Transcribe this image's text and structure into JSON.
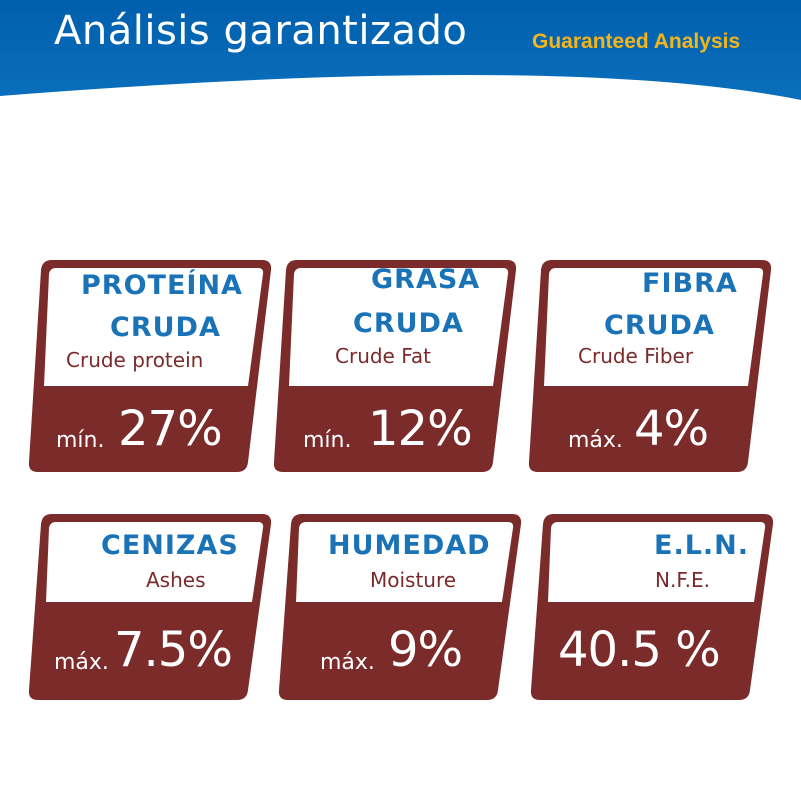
{
  "header": {
    "title": "Análisis garantizado",
    "subtitle": "Guaranteed Analysis",
    "accent_color": "#005fac",
    "subtitle_color": "#f3b51b"
  },
  "colors": {
    "card_fill": "#7c2b2b",
    "label_blue": "#1a72b7",
    "label_red": "#7b2a2a"
  },
  "cards": [
    {
      "name_es_1": "PROTEÍNA",
      "name_es_2": "CRUDA",
      "name_en": "Crude protein",
      "prefix": "mín.",
      "value": "27%"
    },
    {
      "name_es_1": "GRASA",
      "name_es_2": "CRUDA",
      "name_en": "Crude Fat",
      "prefix": "mín.",
      "value": "12%"
    },
    {
      "name_es_1": "FIBRA",
      "name_es_2": "CRUDA",
      "name_en": "Crude Fiber",
      "prefix": "máx.",
      "value": "4%"
    },
    {
      "name_es_1": "CENIZAS",
      "name_en": "Ashes",
      "prefix": "máx.",
      "value": "7.5%"
    },
    {
      "name_es_1": "HUMEDAD",
      "name_en": "Moisture",
      "prefix": "máx.",
      "value": "9%"
    },
    {
      "name_es_1": "E.L.N.",
      "name_en": "N.F.E.",
      "prefix": "",
      "value": "40.5 %"
    }
  ]
}
